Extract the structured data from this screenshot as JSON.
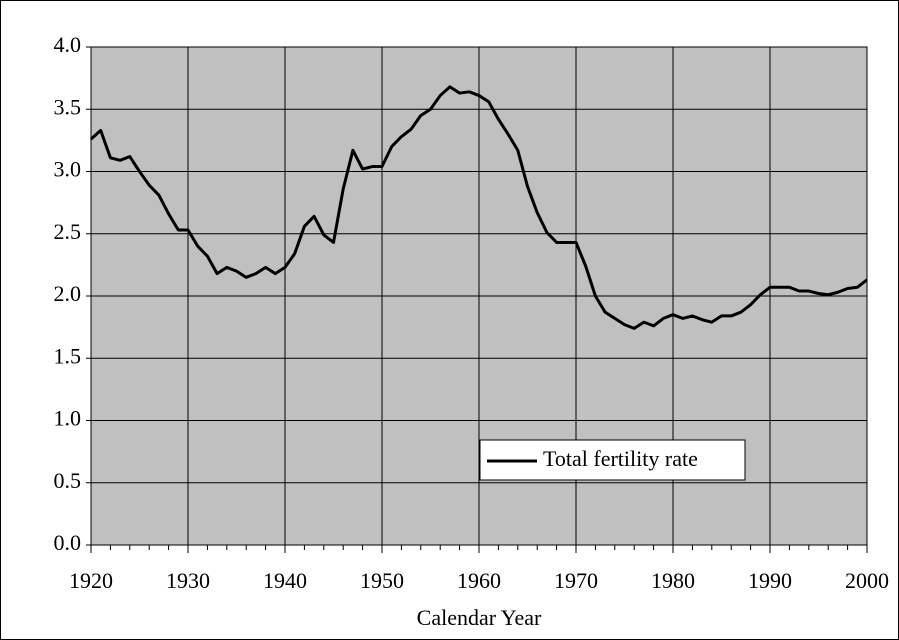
{
  "chart_data": {
    "type": "line",
    "x_label": "Calendar Year",
    "x": [
      1920,
      1921,
      1922,
      1923,
      1924,
      1925,
      1926,
      1927,
      1928,
      1929,
      1930,
      1931,
      1932,
      1933,
      1934,
      1935,
      1936,
      1937,
      1938,
      1939,
      1940,
      1941,
      1942,
      1943,
      1944,
      1945,
      1946,
      1947,
      1948,
      1949,
      1950,
      1951,
      1952,
      1953,
      1954,
      1955,
      1956,
      1957,
      1958,
      1959,
      1960,
      1961,
      1962,
      1963,
      1964,
      1965,
      1966,
      1967,
      1968,
      1969,
      1970,
      1971,
      1972,
      1973,
      1974,
      1975,
      1976,
      1977,
      1978,
      1979,
      1980,
      1981,
      1982,
      1983,
      1984,
      1985,
      1986,
      1987,
      1988,
      1989,
      1990,
      1991,
      1992,
      1993,
      1994,
      1995,
      1996,
      1997,
      1998,
      1999,
      2000
    ],
    "series": [
      {
        "name": "Total fertility rate",
        "color": "#000000",
        "values": [
          3.26,
          3.33,
          3.11,
          3.09,
          3.12,
          3.0,
          2.89,
          2.81,
          2.66,
          2.53,
          2.53,
          2.4,
          2.32,
          2.18,
          2.23,
          2.2,
          2.15,
          2.18,
          2.23,
          2.18,
          2.23,
          2.34,
          2.56,
          2.64,
          2.49,
          2.43,
          2.86,
          3.17,
          3.02,
          3.04,
          3.04,
          3.2,
          3.28,
          3.34,
          3.45,
          3.5,
          3.61,
          3.68,
          3.63,
          3.64,
          3.61,
          3.56,
          3.42,
          3.3,
          3.17,
          2.88,
          2.67,
          2.51,
          2.43,
          2.43,
          2.43,
          2.24,
          2.0,
          1.87,
          1.82,
          1.77,
          1.74,
          1.79,
          1.76,
          1.82,
          1.85,
          1.82,
          1.84,
          1.81,
          1.79,
          1.84,
          1.84,
          1.87,
          1.93,
          2.01,
          2.07,
          2.07,
          2.07,
          2.04,
          2.04,
          2.02,
          2.01,
          2.03,
          2.06,
          2.07,
          2.13
        ]
      }
    ],
    "xlim": [
      1920,
      2000
    ],
    "xticks": [
      1920,
      1930,
      1940,
      1950,
      1960,
      1970,
      1980,
      1990,
      2000
    ],
    "xminorticks": [
      1922,
      1924,
      1926,
      1928,
      1932,
      1934,
      1936,
      1938,
      1942,
      1944,
      1946,
      1948,
      1952,
      1954,
      1956,
      1958,
      1962,
      1964,
      1966,
      1968,
      1972,
      1974,
      1976,
      1978,
      1982,
      1984,
      1986,
      1988,
      1992,
      1994,
      1996,
      1998
    ],
    "ylim": [
      0,
      4
    ],
    "yticks": [
      {
        "value": 0,
        "label": "0.0"
      },
      {
        "value": 0.5,
        "label": "0.5"
      },
      {
        "value": 1,
        "label": "1.0"
      },
      {
        "value": 1.5,
        "label": "1.5"
      },
      {
        "value": 2,
        "label": "2.0"
      },
      {
        "value": 2.5,
        "label": "2.5"
      },
      {
        "value": 3,
        "label": "3.0"
      },
      {
        "value": 3.5,
        "label": "3.5"
      },
      {
        "value": 4,
        "label": "4.0"
      }
    ],
    "grid": true,
    "plot_background": "#c0c0c0",
    "legend": "lower right"
  }
}
